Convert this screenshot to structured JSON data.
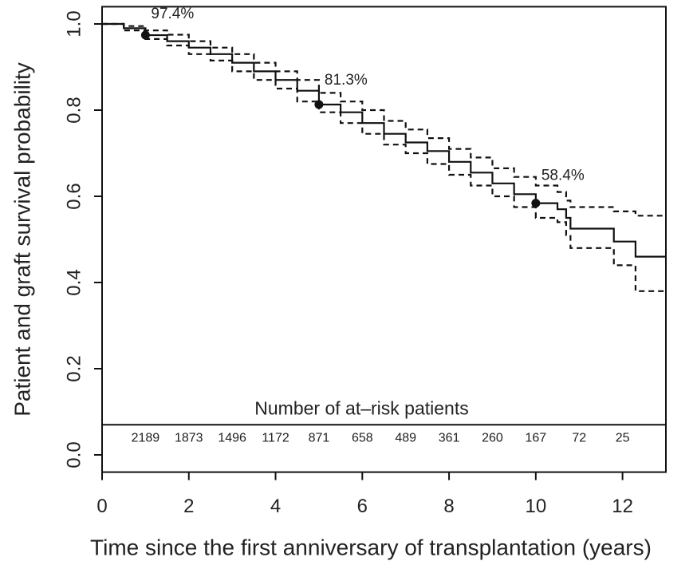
{
  "chart_data": {
    "type": "survival",
    "y_label": "Patient and graft survival probability",
    "x_label": "Time since the first anniversary of transplantation (years)",
    "xlim": [
      0,
      13
    ],
    "ylim": [
      -0.04,
      1.04
    ],
    "xticks": [
      0,
      2,
      4,
      6,
      8,
      10,
      12
    ],
    "yticks": [
      {
        "value": 0,
        "label": "0.0"
      },
      0.2,
      0.4,
      0.6,
      0.8,
      {
        "value": 1,
        "label": "1.0"
      }
    ],
    "x": [
      0,
      0.5,
      1,
      1.5,
      2,
      2.5,
      3,
      3.5,
      4,
      4.5,
      5,
      5.5,
      6,
      6.5,
      7,
      7.5,
      8,
      8.5,
      9,
      9.5,
      10,
      10.5,
      10.7,
      10.8,
      11.8,
      12.3,
      13
    ],
    "series": [
      {
        "role": "estimate",
        "color": "#111111",
        "line_style": "solid",
        "values": [
          1.0,
          0.99,
          0.974,
          0.96,
          0.945,
          0.93,
          0.91,
          0.89,
          0.87,
          0.845,
          0.813,
          0.795,
          0.77,
          0.745,
          0.725,
          0.705,
          0.68,
          0.655,
          0.63,
          0.605,
          0.584,
          0.57,
          0.55,
          0.525,
          0.495,
          0.46,
          0.46
        ]
      },
      {
        "role": "upper",
        "color": "#111111",
        "line_style": "dashed",
        "values": [
          1.0,
          0.995,
          0.985,
          0.975,
          0.96,
          0.945,
          0.93,
          0.91,
          0.89,
          0.87,
          0.84,
          0.82,
          0.8,
          0.775,
          0.755,
          0.735,
          0.71,
          0.69,
          0.665,
          0.645,
          0.625,
          0.61,
          0.59,
          0.575,
          0.565,
          0.555,
          0.555
        ]
      },
      {
        "role": "lower",
        "color": "#111111",
        "line_style": "dashed",
        "values": [
          1.0,
          0.985,
          0.965,
          0.95,
          0.93,
          0.915,
          0.89,
          0.87,
          0.85,
          0.82,
          0.795,
          0.77,
          0.745,
          0.72,
          0.7,
          0.675,
          0.65,
          0.625,
          0.6,
          0.575,
          0.55,
          0.54,
          0.51,
          0.48,
          0.44,
          0.38,
          0.38
        ]
      }
    ],
    "points": {
      "x": [
        1,
        5,
        10
      ],
      "values": [
        0.974,
        0.813,
        0.584
      ],
      "value_labels": [
        "97.4%",
        "81.3%",
        "58.4%"
      ]
    },
    "at_risk": {
      "title": "Number of at–risk patients",
      "level": 0.07,
      "x": [
        1,
        2,
        3,
        4,
        5,
        6,
        7,
        8,
        9,
        10,
        11,
        12
      ],
      "values": [
        2189,
        1873,
        1496,
        1172,
        871,
        658,
        489,
        361,
        260,
        167,
        72,
        25
      ]
    }
  }
}
